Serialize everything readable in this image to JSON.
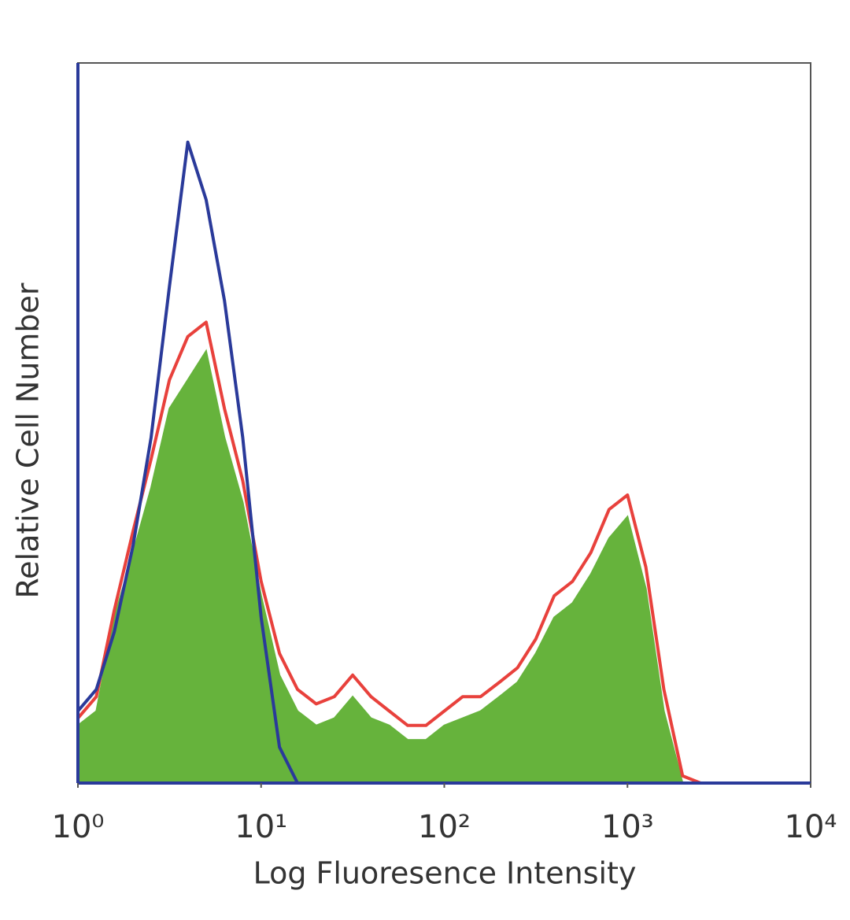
{
  "chart_data": {
    "type": "area",
    "xlabel": "Log Fluoresence Intensity",
    "ylabel": "Relative Cell Number",
    "xscale": "log",
    "xlim": [
      1,
      10000
    ],
    "xticks": [
      {
        "value": 1,
        "label": "10⁰"
      },
      {
        "value": 10,
        "label": "10¹"
      },
      {
        "value": 100,
        "label": "10²"
      },
      {
        "value": 1000,
        "label": "10³"
      },
      {
        "value": 10000,
        "label": "10⁴"
      }
    ],
    "ylim": [
      0,
      100
    ],
    "x": [
      1,
      1.26,
      1.58,
      2,
      2.51,
      3.16,
      3.98,
      5.01,
      6.31,
      7.94,
      10,
      12.6,
      15.8,
      20,
      25.1,
      31.6,
      39.8,
      50.1,
      63.1,
      79.4,
      100,
      126,
      158,
      200,
      251,
      316,
      398,
      501,
      631,
      794,
      1000,
      1260,
      1580,
      2000,
      2510
    ],
    "series": [
      {
        "color": "#66b33c",
        "fill": true,
        "values": [
          8,
          10,
          23,
          32,
          41,
          52,
          56,
          60,
          48,
          39,
          26,
          15,
          10,
          8,
          9,
          12,
          9,
          8,
          6,
          6,
          8,
          9,
          10,
          12,
          14,
          18,
          23,
          25,
          29,
          34,
          37,
          27,
          10,
          0,
          0
        ]
      },
      {
        "color": "#e8413c",
        "fill": false,
        "values": [
          9,
          12,
          24,
          35,
          45,
          56,
          62,
          64,
          52,
          42,
          28,
          18,
          13,
          11,
          12,
          15,
          12,
          10,
          8,
          8,
          10,
          12,
          12,
          14,
          16,
          20,
          26,
          28,
          32,
          38,
          40,
          30,
          13,
          1,
          0
        ]
      },
      {
        "color": "#2a3a9a",
        "fill": false,
        "values": [
          10,
          13,
          21,
          33,
          48,
          69,
          89,
          81,
          67,
          48,
          23,
          5,
          0,
          0,
          0,
          0,
          0,
          0,
          0,
          0,
          0,
          0,
          0,
          0,
          0,
          0,
          0,
          0,
          0,
          0,
          0,
          0,
          0,
          0,
          0
        ]
      }
    ]
  }
}
